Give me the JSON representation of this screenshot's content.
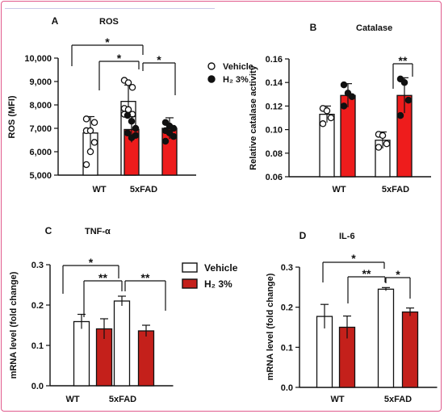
{
  "chart_data": [
    {
      "panel_letter": "A",
      "type": "bar",
      "title": "ROS",
      "ylabel": "ROS (MFI)",
      "ylim": [
        5000,
        10000
      ],
      "yticks": [
        5000,
        6000,
        7000,
        8000,
        9000,
        10000
      ],
      "ytick_labels": [
        "5,000",
        "6,000",
        "7,000",
        "8,000",
        "9,000",
        "10,000"
      ],
      "categories": [
        "WT",
        "5xFAD"
      ],
      "series": [
        {
          "name": "Vehicle",
          "color": "#ffffff",
          "values": [
            6800,
            8150
          ],
          "err": [
            700,
            700
          ],
          "points": [
            [
              6900,
              6000,
              6400,
              5450,
              6900,
              7250,
              7400
            ],
            [
              9050,
              8950,
              8750,
              7850,
              7800,
              7600,
              7600
            ]
          ]
        },
        {
          "name": "H₂ 3%",
          "color": "#ee1c1c",
          "values": [
            6950,
            7000
          ],
          "err": [
            550,
            450
          ],
          "points": [
            [
              7550,
              7300,
              7000,
              6800,
              6600,
              6700
            ],
            [
              7250,
              7100,
              7000,
              6900,
              6800,
              6650,
              6450
            ]
          ]
        }
      ],
      "legend": {
        "position": "right",
        "marker": "dot",
        "entries": [
          "Vehicle",
          "H₂ 3%"
        ]
      },
      "significance": [
        {
          "label": "*",
          "from": "0-0",
          "to": "1-0"
        },
        {
          "label": "*",
          "from": "0-1",
          "to": "1-0"
        },
        {
          "label": "*",
          "from": "1-0",
          "to": "1-1"
        }
      ]
    },
    {
      "panel_letter": "B",
      "type": "bar",
      "title": "Catalase",
      "ylabel": "Relative catalase activity",
      "ylim": [
        0.06,
        0.16
      ],
      "yticks": [
        0.06,
        0.08,
        0.1,
        0.12,
        0.14,
        0.16
      ],
      "ytick_labels": [
        "0.06",
        "0.08",
        "0.10",
        "0.12",
        "0.14",
        "0.16"
      ],
      "categories": [
        "WT",
        "5xFAD"
      ],
      "series": [
        {
          "name": "Vehicle",
          "color": "#ffffff",
          "values": [
            0.113,
            0.091
          ],
          "err": [
            0.007,
            0.007
          ],
          "points": [
            [
              0.118,
              0.116,
              0.11,
              0.105
            ],
            [
              0.096,
              0.095,
              0.088,
              0.085
            ]
          ]
        },
        {
          "name": "H₂ 3%",
          "color": "#ee1c1c",
          "values": [
            0.129,
            0.129
          ],
          "err": [
            0.01,
            0.015
          ],
          "points": [
            [
              0.138,
              0.131,
              0.128,
              0.12
            ],
            [
              0.143,
              0.14,
              0.125,
              0.112
            ]
          ]
        }
      ],
      "significance": [
        {
          "label": "**",
          "from": "1-0",
          "to": "1-1"
        }
      ]
    },
    {
      "panel_letter": "C",
      "type": "bar",
      "title": "TNF-α",
      "ylabel": "mRNA level (fold change)",
      "ylim": [
        0,
        0.3
      ],
      "yticks": [
        0,
        0.1,
        0.2,
        0.3
      ],
      "ytick_labels": [
        "0.0",
        "0.1",
        "0.2",
        "0.3"
      ],
      "categories": [
        "WT",
        "5xFAD"
      ],
      "series": [
        {
          "name": "Vehicle",
          "color": "#ffffff",
          "values": [
            0.159,
            0.21
          ],
          "err": [
            0.018,
            0.012
          ]
        },
        {
          "name": "H₂ 3%",
          "color": "#c4201b",
          "values": [
            0.141,
            0.136
          ],
          "err": [
            0.025,
            0.014
          ]
        }
      ],
      "legend": {
        "position": "right",
        "marker": "box",
        "entries": [
          "Vehicle",
          "H₂ 3%"
        ]
      },
      "significance": [
        {
          "label": "*",
          "from": "0-0",
          "to": "1-0"
        },
        {
          "label": "**",
          "from": "0-1",
          "to": "1-0"
        },
        {
          "label": "**",
          "from": "1-0",
          "to": "1-1"
        }
      ]
    },
    {
      "panel_letter": "D",
      "type": "bar",
      "title": "IL-6",
      "ylabel": "mRNA level (fold change)",
      "ylim": [
        0,
        0.3
      ],
      "yticks": [
        0,
        0.1,
        0.2,
        0.3
      ],
      "ytick_labels": [
        "0.0",
        "0.1",
        "0.2",
        "0.3"
      ],
      "categories": [
        "WT",
        "5xFAD"
      ],
      "series": [
        {
          "name": "Vehicle",
          "color": "#ffffff",
          "values": [
            0.177,
            0.245
          ],
          "err": [
            0.03,
            0.004
          ]
        },
        {
          "name": "H₂ 3%",
          "color": "#c4201b",
          "values": [
            0.15,
            0.188
          ],
          "err": [
            0.028,
            0.01
          ]
        }
      ],
      "significance": [
        {
          "label": "*",
          "from": "0-0",
          "to": "1-0"
        },
        {
          "label": "**",
          "from": "0-1",
          "to": "1-0"
        },
        {
          "label": "*",
          "from": "1-0",
          "to": "1-1"
        }
      ]
    }
  ]
}
